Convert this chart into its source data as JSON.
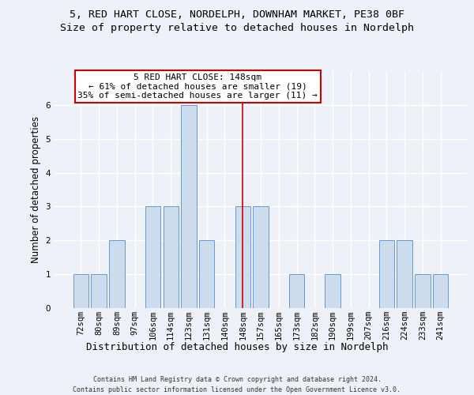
{
  "title_line1": "5, RED HART CLOSE, NORDELPH, DOWNHAM MARKET, PE38 0BF",
  "title_line2": "Size of property relative to detached houses in Nordelph",
  "xlabel": "Distribution of detached houses by size in Nordelph",
  "ylabel": "Number of detached properties",
  "footer_line1": "Contains HM Land Registry data © Crown copyright and database right 2024.",
  "footer_line2": "Contains public sector information licensed under the Open Government Licence v3.0.",
  "categories": [
    "72sqm",
    "80sqm",
    "89sqm",
    "97sqm",
    "106sqm",
    "114sqm",
    "123sqm",
    "131sqm",
    "140sqm",
    "148sqm",
    "157sqm",
    "165sqm",
    "173sqm",
    "182sqm",
    "190sqm",
    "199sqm",
    "207sqm",
    "216sqm",
    "224sqm",
    "233sqm",
    "241sqm"
  ],
  "values": [
    1,
    1,
    2,
    0,
    3,
    3,
    6,
    2,
    0,
    3,
    3,
    0,
    1,
    0,
    1,
    0,
    0,
    2,
    2,
    1,
    1
  ],
  "bar_color": "#cddcec",
  "bar_edge_color": "#6699cc",
  "marker_index": 9,
  "marker_line_color": "#cc0000",
  "annotation_line1": "5 RED HART CLOSE: 148sqm",
  "annotation_line2": "← 61% of detached houses are smaller (19)",
  "annotation_line3": "35% of semi-detached houses are larger (11) →",
  "annotation_box_edge_color": "#cc0000",
  "ylim": [
    0,
    7
  ],
  "yticks": [
    0,
    1,
    2,
    3,
    4,
    5,
    6,
    7
  ],
  "background_color": "#eef2f8",
  "plot_background": "#eef2f8",
  "grid_color": "#ffffff",
  "title_fontsize": 9.5,
  "subtitle_fontsize": 9.5,
  "ylabel_fontsize": 8.5,
  "xlabel_fontsize": 9,
  "tick_fontsize": 7.5,
  "footer_fontsize": 6,
  "ann_fontsize": 8
}
